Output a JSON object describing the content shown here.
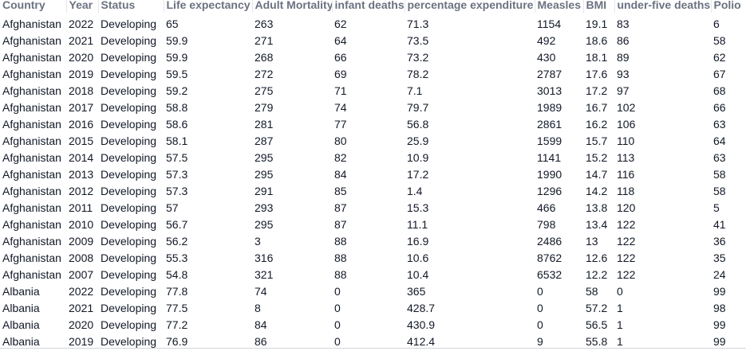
{
  "table": {
    "columns": [
      "Country",
      "Year",
      "Status",
      "Life expectancy",
      "Adult Mortality",
      "infant deaths",
      "percentage expenditure",
      "Measles",
      "BMI",
      "under-five deaths",
      "Polio"
    ],
    "rows": [
      [
        "Afghanistan",
        "2022",
        "Developing",
        "65",
        "263",
        "62",
        "71.3",
        "1154",
        "19.1",
        "83",
        "6"
      ],
      [
        "Afghanistan",
        "2021",
        "Developing",
        "59.9",
        "271",
        "64",
        "73.5",
        "492",
        "18.6",
        "86",
        "58"
      ],
      [
        "Afghanistan",
        "2020",
        "Developing",
        "59.9",
        "268",
        "66",
        "73.2",
        "430",
        "18.1",
        "89",
        "62"
      ],
      [
        "Afghanistan",
        "2019",
        "Developing",
        "59.5",
        "272",
        "69",
        "78.2",
        "2787",
        "17.6",
        "93",
        "67"
      ],
      [
        "Afghanistan",
        "2018",
        "Developing",
        "59.2",
        "275",
        "71",
        "7.1",
        "3013",
        "17.2",
        "97",
        "68"
      ],
      [
        "Afghanistan",
        "2017",
        "Developing",
        "58.8",
        "279",
        "74",
        "79.7",
        "1989",
        "16.7",
        "102",
        "66"
      ],
      [
        "Afghanistan",
        "2016",
        "Developing",
        "58.6",
        "281",
        "77",
        "56.8",
        "2861",
        "16.2",
        "106",
        "63"
      ],
      [
        "Afghanistan",
        "2015",
        "Developing",
        "58.1",
        "287",
        "80",
        "25.9",
        "1599",
        "15.7",
        "110",
        "64"
      ],
      [
        "Afghanistan",
        "2014",
        "Developing",
        "57.5",
        "295",
        "82",
        "10.9",
        "1141",
        "15.2",
        "113",
        "63"
      ],
      [
        "Afghanistan",
        "2013",
        "Developing",
        "57.3",
        "295",
        "84",
        "17.2",
        "1990",
        "14.7",
        "116",
        "58"
      ],
      [
        "Afghanistan",
        "2012",
        "Developing",
        "57.3",
        "291",
        "85",
        "1.4",
        "1296",
        "14.2",
        "118",
        "58"
      ],
      [
        "Afghanistan",
        "2011",
        "Developing",
        "57",
        "293",
        "87",
        "15.3",
        "466",
        "13.8",
        "120",
        "5"
      ],
      [
        "Afghanistan",
        "2010",
        "Developing",
        "56.7",
        "295",
        "87",
        "11.1",
        "798",
        "13.4",
        "122",
        "41"
      ],
      [
        "Afghanistan",
        "2009",
        "Developing",
        "56.2",
        "3",
        "88",
        "16.9",
        "2486",
        "13",
        "122",
        "36"
      ],
      [
        "Afghanistan",
        "2008",
        "Developing",
        "55.3",
        "316",
        "88",
        "10.6",
        "8762",
        "12.6",
        "122",
        "35"
      ],
      [
        "Afghanistan",
        "2007",
        "Developing",
        "54.8",
        "321",
        "88",
        "10.4",
        "6532",
        "12.2",
        "122",
        "24"
      ],
      [
        "Albania",
        "2022",
        "Developing",
        "77.8",
        "74",
        "0",
        "365",
        "0",
        "58",
        "0",
        "99"
      ],
      [
        "Albania",
        "2021",
        "Developing",
        "77.5",
        "8",
        "0",
        "428.7",
        "0",
        "57.2",
        "1",
        "98"
      ],
      [
        "Albania",
        "2020",
        "Developing",
        "77.2",
        "84",
        "0",
        "430.9",
        "0",
        "56.5",
        "1",
        "99"
      ],
      [
        "Albania",
        "2019",
        "Developing",
        "76.9",
        "86",
        "0",
        "412.4",
        "9",
        "55.8",
        "1",
        "99"
      ]
    ]
  }
}
